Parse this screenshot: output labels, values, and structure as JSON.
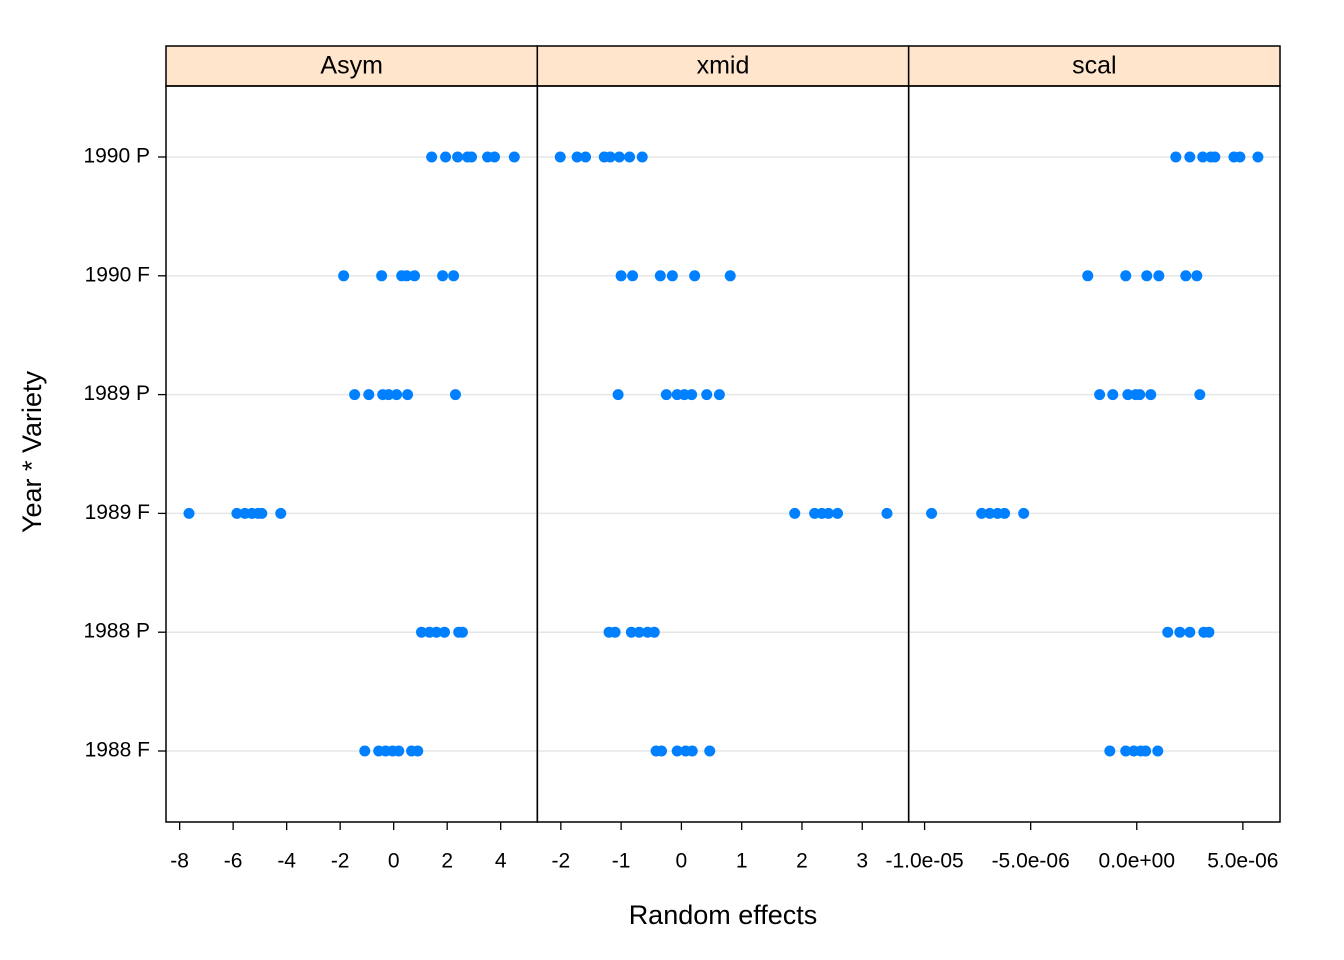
{
  "chart_data": {
    "type": "dotplot",
    "xlabel": "Random effects",
    "ylabel": "Year * Variety",
    "color": "#0080ff",
    "grid": true,
    "strip_color": "#ffe5cc",
    "categories": [
      "1988 F",
      "1988 P",
      "1989 F",
      "1989 P",
      "1990 F",
      "1990 P"
    ],
    "panels": [
      {
        "title": "Asym",
        "xlim": [
          -8.51,
          5.37
        ],
        "xticks": [
          -8,
          -6,
          -4,
          -2,
          0,
          2,
          4
        ],
        "values": [
          [
            -1.08,
            -0.56,
            -0.3,
            -0.04,
            0.19,
            0.67,
            0.9
          ],
          [
            1.04,
            1.34,
            1.6,
            1.9,
            2.43,
            2.57
          ],
          [
            -7.65,
            -5.86,
            -5.56,
            -5.3,
            -5.07,
            -4.93,
            -4.22
          ],
          [
            -1.46,
            -0.93,
            -0.41,
            -0.19,
            0.11,
            0.52,
            2.31
          ],
          [
            -1.87,
            -0.45,
            0.3,
            0.49,
            0.78,
            1.83,
            2.24
          ],
          [
            1.42,
            1.94,
            2.39,
            2.76,
            2.91,
            3.51,
            3.77,
            4.51
          ]
        ]
      },
      {
        "title": "xmid",
        "xlim": [
          -2.39,
          3.77
        ],
        "xticks": [
          -2,
          -1,
          0,
          1,
          2,
          3
        ],
        "values": [
          [
            -0.42,
            -0.33,
            -0.07,
            0.07,
            0.18,
            0.47
          ],
          [
            -1.2,
            -1.1,
            -0.83,
            -0.7,
            -0.56,
            -0.45
          ],
          [
            1.88,
            2.21,
            2.33,
            2.44,
            2.59,
            3.41
          ],
          [
            -1.05,
            -0.25,
            -0.07,
            0.05,
            0.17,
            0.42,
            0.63
          ],
          [
            -1.0,
            -0.81,
            -0.35,
            -0.15,
            0.22,
            0.81
          ],
          [
            -2.01,
            -1.73,
            -1.59,
            -1.28,
            -1.18,
            -1.03,
            -0.86,
            -0.65
          ]
        ]
      },
      {
        "title": "scal",
        "xlim": [
          -1.075e-05,
          6.75e-06
        ],
        "xticks": [
          {
            "value": -1e-05,
            "label": "-1.0e-05"
          },
          {
            "value": -5e-06,
            "label": "-5.0e-06"
          },
          {
            "value": 0,
            "label": "0.0e+00"
          },
          {
            "value": 5e-06,
            "label": "5.0e-06"
          }
        ],
        "values": [
          [
            -1.27e-06,
            -5.2e-07,
            -1.4e-07,
            1.9e-07,
            4.2e-07,
            9.9e-07
          ],
          [
            1.46e-06,
            2.03e-06,
            2.5e-06,
            3.16e-06,
            3.4e-06
          ],
          [
            -9.67e-06,
            -7.31e-06,
            -6.93e-06,
            -6.56e-06,
            -6.23e-06,
            -5.33e-06
          ],
          [
            -1.75e-06,
            -1.13e-06,
            -4.2e-07,
            -5e-08,
            1.4e-07,
            6.6e-07,
            2.97e-06
          ],
          [
            -2.31e-06,
            -5.2e-07,
            4.7e-07,
            1.04e-06,
            2.31e-06,
            2.83e-06
          ],
          [
            1.84e-06,
            2.5e-06,
            3.11e-06,
            3.49e-06,
            3.68e-06,
            4.58e-06,
            4.86e-06,
            5.71e-06
          ]
        ]
      }
    ]
  }
}
